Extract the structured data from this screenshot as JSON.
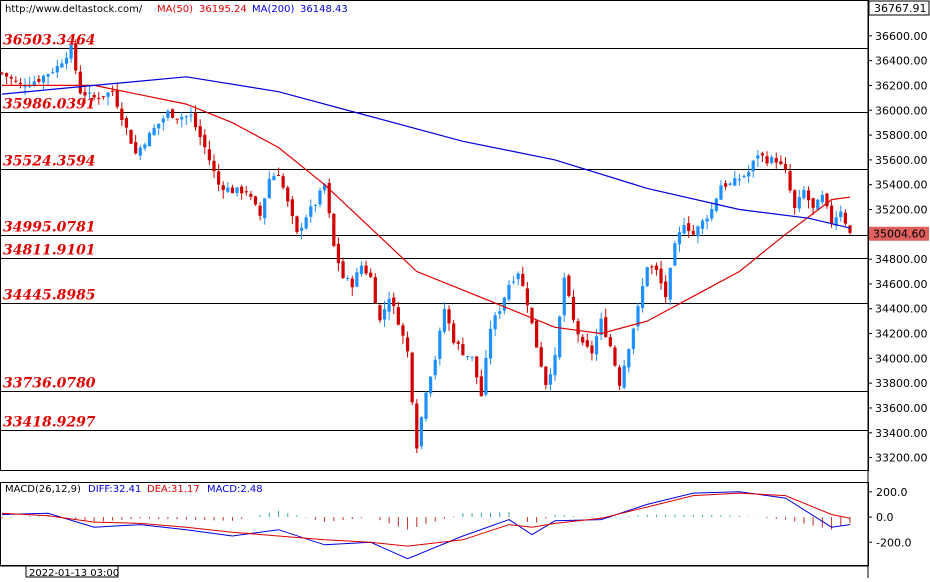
{
  "header": {
    "site": "http://www.deltastock.com/",
    "ma50_label": "MA(50)",
    "ma50_value": "36195.24",
    "ma200_label": "MA(200)",
    "ma200_value": "36148.43",
    "ma50_color": "#e00000",
    "ma200_color": "#0000e0"
  },
  "price_axis": {
    "top_value": "36767.91",
    "current_price": "35004.60",
    "ticks": [
      "36600.00",
      "36400.00",
      "36200.00",
      "36000.00",
      "35800.00",
      "35600.00",
      "35400.00",
      "35200.00",
      "35000.00",
      "34800.00",
      "34600.00",
      "34400.00",
      "34200.00",
      "34000.00",
      "33800.00",
      "33600.00",
      "33400.00",
      "33200.00"
    ]
  },
  "levels": [
    "36503.3464",
    "35986.0391",
    "35524.3594",
    "34995.0781",
    "34811.9101",
    "34445.8985",
    "33736.0780",
    "33418.9297"
  ],
  "macd_panel": {
    "title": "MACD(26,12,9)",
    "diff_label": "DIFF:32.41",
    "dea_label": "DEA:31.17",
    "macd_label": "MACD:2.48",
    "ticks": [
      "200.0",
      "0.0",
      "-200.0"
    ]
  },
  "footer": {
    "timestamp": "2022-01-13 03:00"
  },
  "colors": {
    "up": "#1e90ff",
    "down": "#d00000",
    "level_label": "#e00000",
    "current_price_box": "#e06060"
  },
  "chart_data": [
    {
      "type": "candlestick",
      "title": "",
      "ylim": [
        33100,
        36767.91
      ],
      "level_values": [
        36503.3464,
        35986.0391,
        35524.3594,
        34995.0781,
        34811.9101,
        34445.8985,
        33736.078,
        33418.9297
      ],
      "close_path": [
        [
          0,
          36300
        ],
        [
          4,
          36200
        ],
        [
          8,
          36250
        ],
        [
          12,
          36350
        ],
        [
          15,
          36500
        ],
        [
          17,
          36150
        ],
        [
          20,
          36100
        ],
        [
          24,
          36150
        ],
        [
          26,
          35950
        ],
        [
          29,
          35650
        ],
        [
          33,
          35850
        ],
        [
          36,
          35980
        ],
        [
          38,
          35950
        ],
        [
          41,
          35950
        ],
        [
          44,
          35700
        ],
        [
          47,
          35400
        ],
        [
          50,
          35350
        ],
        [
          53,
          35350
        ],
        [
          56,
          35150
        ],
        [
          58,
          35450
        ],
        [
          60,
          35500
        ],
        [
          62,
          35250
        ],
        [
          64,
          35000
        ],
        [
          66,
          35150
        ],
        [
          68,
          35250
        ],
        [
          70,
          35400
        ],
        [
          72,
          34900
        ],
        [
          74,
          34650
        ],
        [
          76,
          34600
        ],
        [
          78,
          34750
        ],
        [
          80,
          34650
        ],
        [
          82,
          34300
        ],
        [
          84,
          34500
        ],
        [
          86,
          34300
        ],
        [
          88,
          34050
        ],
        [
          90,
          33300
        ],
        [
          92,
          33750
        ],
        [
          94,
          34000
        ],
        [
          96,
          34400
        ],
        [
          98,
          34150
        ],
        [
          100,
          34050
        ],
        [
          102,
          34000
        ],
        [
          104,
          33700
        ],
        [
          106,
          34250
        ],
        [
          108,
          34400
        ],
        [
          110,
          34600
        ],
        [
          112,
          34700
        ],
        [
          114,
          34450
        ],
        [
          116,
          34100
        ],
        [
          118,
          33800
        ],
        [
          120,
          34000
        ],
        [
          122,
          34650
        ],
        [
          124,
          34300
        ],
        [
          126,
          34100
        ],
        [
          128,
          34050
        ],
        [
          130,
          34300
        ],
        [
          132,
          34100
        ],
        [
          134,
          33800
        ],
        [
          136,
          34100
        ],
        [
          138,
          34400
        ],
        [
          140,
          34750
        ],
        [
          142,
          34700
        ],
        [
          144,
          34500
        ],
        [
          146,
          34900
        ],
        [
          148,
          35100
        ],
        [
          150,
          35000
        ],
        [
          152,
          35100
        ],
        [
          154,
          35200
        ],
        [
          156,
          35400
        ],
        [
          158,
          35400
        ],
        [
          160,
          35450
        ],
        [
          162,
          35500
        ],
        [
          164,
          35650
        ],
        [
          166,
          35600
        ],
        [
          168,
          35600
        ],
        [
          170,
          35500
        ],
        [
          172,
          35200
        ],
        [
          174,
          35350
        ],
        [
          176,
          35200
        ],
        [
          178,
          35300
        ],
        [
          180,
          35100
        ],
        [
          182,
          35200
        ],
        [
          184,
          35004.6
        ]
      ],
      "ma50_path": [
        [
          0,
          36200
        ],
        [
          20,
          36200
        ],
        [
          40,
          36050
        ],
        [
          50,
          35900
        ],
        [
          60,
          35700
        ],
        [
          70,
          35400
        ],
        [
          80,
          35050
        ],
        [
          90,
          34700
        ],
        [
          100,
          34550
        ],
        [
          110,
          34400
        ],
        [
          120,
          34250
        ],
        [
          130,
          34200
        ],
        [
          140,
          34300
        ],
        [
          150,
          34500
        ],
        [
          160,
          34700
        ],
        [
          170,
          35000
        ],
        [
          180,
          35280
        ],
        [
          184,
          35300
        ]
      ],
      "ma200_path": [
        [
          0,
          36130
        ],
        [
          20,
          36200
        ],
        [
          40,
          36270
        ],
        [
          60,
          36150
        ],
        [
          80,
          35950
        ],
        [
          100,
          35750
        ],
        [
          120,
          35600
        ],
        [
          140,
          35370
        ],
        [
          160,
          35200
        ],
        [
          175,
          35130
        ],
        [
          184,
          35050
        ]
      ],
      "macd": {
        "diff_path": [
          [
            0,
            20
          ],
          [
            10,
            30
          ],
          [
            20,
            -80
          ],
          [
            30,
            -60
          ],
          [
            40,
            -100
          ],
          [
            50,
            -150
          ],
          [
            60,
            -100
          ],
          [
            70,
            -220
          ],
          [
            80,
            -200
          ],
          [
            88,
            -330
          ],
          [
            100,
            -150
          ],
          [
            110,
            -20
          ],
          [
            115,
            -140
          ],
          [
            120,
            -30
          ],
          [
            130,
            -20
          ],
          [
            140,
            100
          ],
          [
            150,
            190
          ],
          [
            160,
            200
          ],
          [
            170,
            150
          ],
          [
            180,
            -80
          ],
          [
            184,
            -60
          ]
        ],
        "dea_path": [
          [
            0,
            30
          ],
          [
            10,
            10
          ],
          [
            20,
            -40
          ],
          [
            30,
            -50
          ],
          [
            40,
            -80
          ],
          [
            50,
            -120
          ],
          [
            60,
            -150
          ],
          [
            70,
            -180
          ],
          [
            80,
            -200
          ],
          [
            88,
            -230
          ],
          [
            100,
            -180
          ],
          [
            110,
            -60
          ],
          [
            115,
            -80
          ],
          [
            120,
            -50
          ],
          [
            130,
            -10
          ],
          [
            140,
            80
          ],
          [
            150,
            170
          ],
          [
            160,
            190
          ],
          [
            170,
            170
          ],
          [
            180,
            20
          ],
          [
            184,
            -10
          ]
        ],
        "ylim": [
          -380,
          270
        ]
      }
    }
  ]
}
